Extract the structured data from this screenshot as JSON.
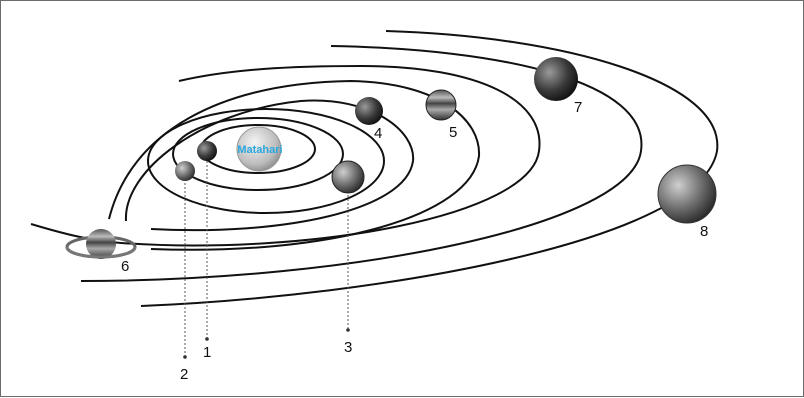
{
  "sun": {
    "label": "Matahari"
  },
  "planets": [
    {
      "label": "1",
      "name": "planet-1"
    },
    {
      "label": "2",
      "name": "planet-2"
    },
    {
      "label": "3",
      "name": "planet-3"
    },
    {
      "label": "4",
      "name": "planet-4"
    },
    {
      "label": "5",
      "name": "planet-5"
    },
    {
      "label": "6",
      "name": "planet-6"
    },
    {
      "label": "7",
      "name": "planet-7"
    },
    {
      "label": "8",
      "name": "planet-8"
    }
  ],
  "colors": {
    "sun_label": "#2aa7df",
    "orbit": "#111111"
  }
}
